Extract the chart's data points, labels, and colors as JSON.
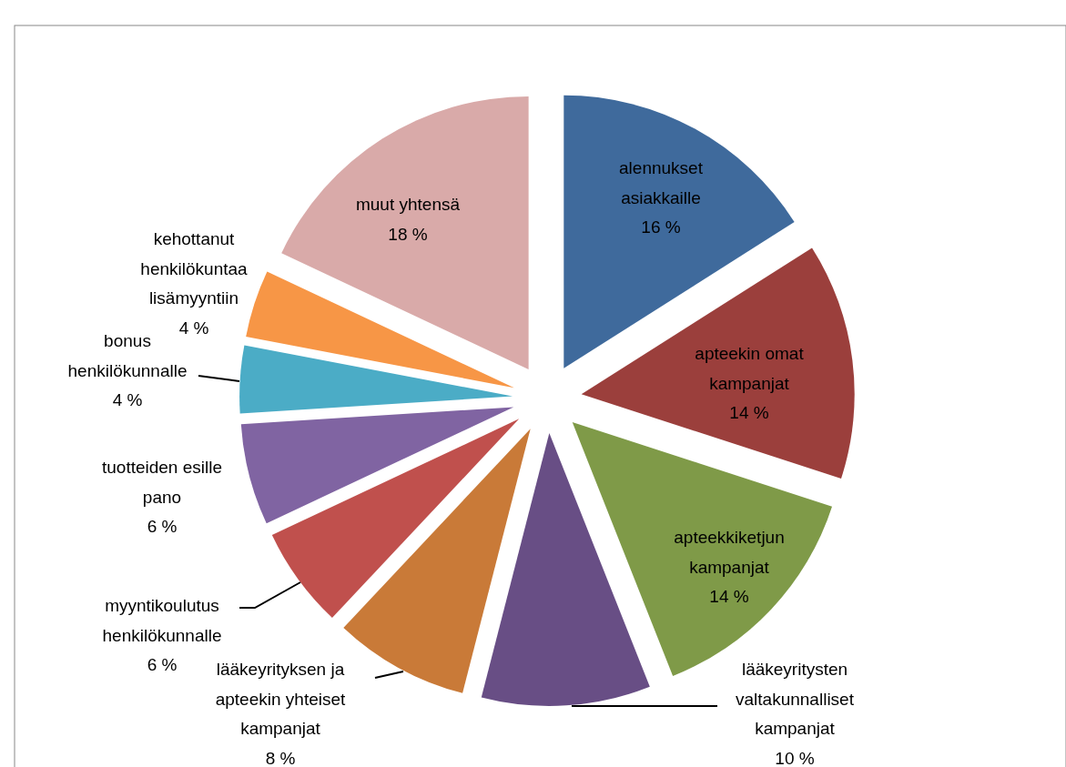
{
  "chart_data": {
    "type": "pie",
    "categories": [
      "alennukset asiakkaille",
      "apteekin omat kampanjat",
      "apteekkiketjun kampanjat",
      "lääkeyritysten valtakunnalliset kampanjat",
      "lääkeyrityksen ja apteekin yhteiset kampanjat",
      "myyntikoulutus henkilökunnalle",
      "tuotteiden esille pano",
      "bonus henkilökunnalle",
      "kehottanut henkilökuntaa lisämyyntiin",
      "muut yhtensä"
    ],
    "values": [
      16,
      14,
      14,
      10,
      8,
      6,
      6,
      4,
      4,
      18
    ],
    "value_labels": [
      "16 %",
      "14 %",
      "14 %",
      "10 %",
      "8 %",
      "6 %",
      "6 %",
      "4 %",
      "4 %",
      "18 %"
    ],
    "colors": [
      "#3f6a9c",
      "#9b3f3c",
      "#7f9a48",
      "#684e85",
      "#c97a38",
      "#c0504d",
      "#8064a2",
      "#4bacc6",
      "#f79646",
      "#d9aaa9"
    ]
  }
}
